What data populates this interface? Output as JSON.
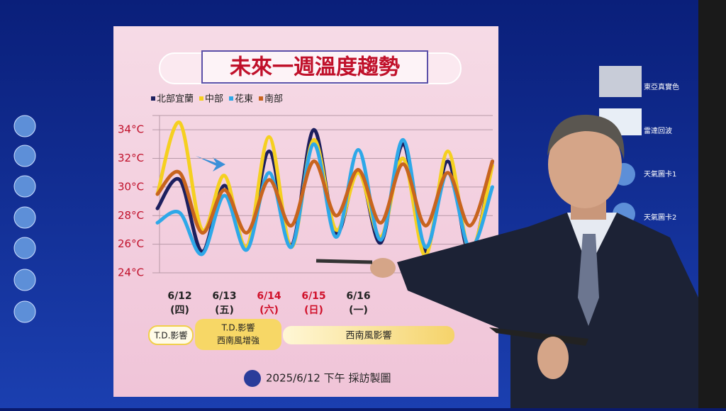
{
  "chart_data": {
    "type": "line",
    "title": "未來一週溫度趨勢",
    "categories": [
      null,
      "6/12",
      null,
      "6/13",
      null,
      "6/14",
      null,
      "6/15",
      null,
      "6/16",
      null,
      null,
      null,
      null,
      null,
      null
    ],
    "category_sublabels": [
      null,
      "(四)",
      null,
      "(五)",
      null,
      "(六)",
      null,
      "(日)",
      null,
      "(一)",
      null,
      null,
      null,
      null,
      null,
      null
    ],
    "category_colors": [
      null,
      "#222222",
      null,
      "#222222",
      null,
      "#d0102a",
      null,
      "#d0102a",
      null,
      "#222222",
      null,
      null,
      null,
      null,
      null,
      null
    ],
    "series": [
      {
        "name": "北部宜蘭",
        "color": "#1c1f5e",
        "values": [
          28.5,
          30.5,
          25.5,
          30.1,
          25.8,
          32.5,
          25.9,
          34.0,
          26.8,
          31.2,
          26.1,
          33.0,
          25.5,
          31.8,
          25.3,
          31.8
        ]
      },
      {
        "name": "中部",
        "color": "#f5d020",
        "values": [
          29.5,
          34.5,
          27.0,
          30.8,
          25.8,
          33.5,
          25.8,
          33.3,
          27.0,
          31.0,
          26.5,
          32.0,
          25.2,
          32.5,
          25.5,
          31.5
        ]
      },
      {
        "name": "花東",
        "color": "#2ea8e8",
        "values": [
          27.5,
          28.2,
          25.3,
          29.4,
          25.6,
          31.0,
          25.8,
          33.0,
          26.5,
          32.6,
          26.3,
          33.3,
          25.8,
          31.0,
          25.7,
          30.0
        ]
      },
      {
        "name": "南部",
        "color": "#c8641e",
        "values": [
          29.5,
          31.0,
          26.8,
          29.8,
          26.8,
          30.5,
          27.3,
          31.8,
          28.0,
          31.2,
          27.5,
          31.6,
          27.3,
          31.0,
          27.3,
          31.8
        ]
      }
    ],
    "ylim": [
      24,
      35
    ],
    "yticks": [
      {
        "value": 24,
        "label": "24°C"
      },
      {
        "value": 26,
        "label": "26°C"
      },
      {
        "value": 28,
        "label": "28°C"
      },
      {
        "value": 30,
        "label": "30°C"
      },
      {
        "value": 32,
        "label": "32°C"
      },
      {
        "value": 34,
        "label": "34°C"
      }
    ],
    "grid": true,
    "annotations": [
      "T.D.影響",
      "T.D.影響",
      "西南風增強",
      "西南風影響"
    ],
    "footer": "2025/6/12 下午 採訪製圖"
  },
  "sidebar": {
    "items": [
      "東亞真實色",
      "雷達回波",
      "天氣圖卡1",
      "天氣圖卡2"
    ]
  }
}
